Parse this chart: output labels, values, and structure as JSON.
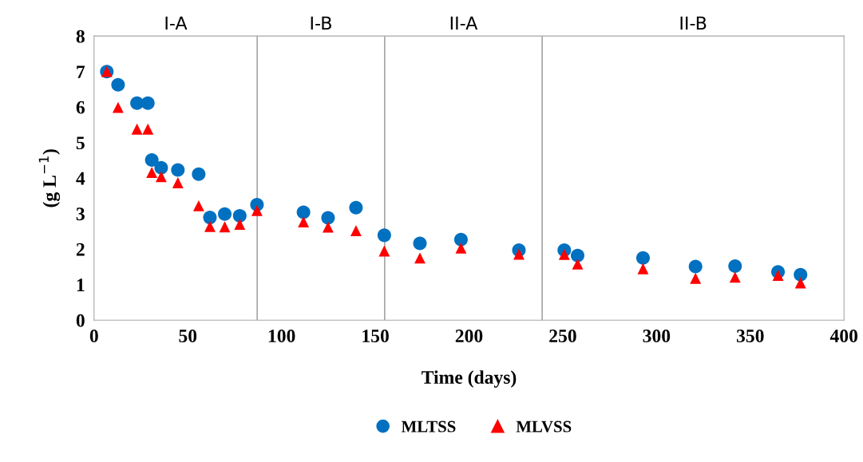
{
  "chart_data": {
    "type": "scatter",
    "xlabel": "Time (days)",
    "ylabel": "(g L$^{−1}$)",
    "xlim": [
      0,
      400
    ],
    "xticks": [
      0,
      50,
      100,
      150,
      200,
      250,
      300,
      350,
      400
    ],
    "ylim": [
      0,
      8
    ],
    "yticks": [
      0,
      1,
      2,
      3,
      4,
      5,
      6,
      7,
      8
    ],
    "grid": false,
    "legend": "bottom",
    "ref_lines": [
      {
        "axis": "x",
        "value": 87,
        "color": "#a6a6a6"
      },
      {
        "axis": "x",
        "value": 155,
        "color": "#a6a6a6"
      },
      {
        "axis": "x",
        "value": 239,
        "color": "#a6a6a6"
      }
    ],
    "annotations": [
      "I-A",
      "I-B",
      "II-A",
      "II-B"
    ],
    "series": [
      {
        "name": "MLTSS",
        "color": "#0070c0",
        "marker": "circle",
        "x": [
          6.8,
          12.8,
          22.9,
          28.7,
          30.8,
          35.8,
          44.7,
          55.8,
          61.8,
          69.7,
          77.7,
          86.9,
          111.7,
          124.8,
          139.7,
          154.8,
          173.8,
          195.7,
          226.6,
          250.8,
          257.9,
          292.8,
          320.8,
          341.9,
          364.8,
          376.8
        ],
        "values": [
          7.0,
          6.63,
          6.11,
          6.11,
          4.51,
          4.29,
          4.23,
          4.11,
          2.89,
          2.99,
          2.94,
          3.25,
          3.04,
          2.88,
          3.17,
          2.39,
          2.16,
          2.27,
          1.97,
          1.97,
          1.82,
          1.75,
          1.51,
          1.52,
          1.36,
          1.28
        ]
      },
      {
        "name": "MLVSS",
        "color": "#ff0000",
        "marker": "triangle",
        "x": [
          6.8,
          12.8,
          22.9,
          28.7,
          30.8,
          35.8,
          44.7,
          55.8,
          61.8,
          69.7,
          77.7,
          86.9,
          111.7,
          124.8,
          139.7,
          154.8,
          173.8,
          195.7,
          226.6,
          250.8,
          257.9,
          292.8,
          320.8,
          341.9,
          364.8,
          376.8
        ],
        "values": [
          7.0,
          5.99,
          5.38,
          5.38,
          4.16,
          4.04,
          3.87,
          3.22,
          2.64,
          2.63,
          2.7,
          3.09,
          2.77,
          2.62,
          2.52,
          1.95,
          1.75,
          2.03,
          1.86,
          1.85,
          1.58,
          1.45,
          1.18,
          1.21,
          1.26,
          1.05
        ]
      }
    ]
  }
}
